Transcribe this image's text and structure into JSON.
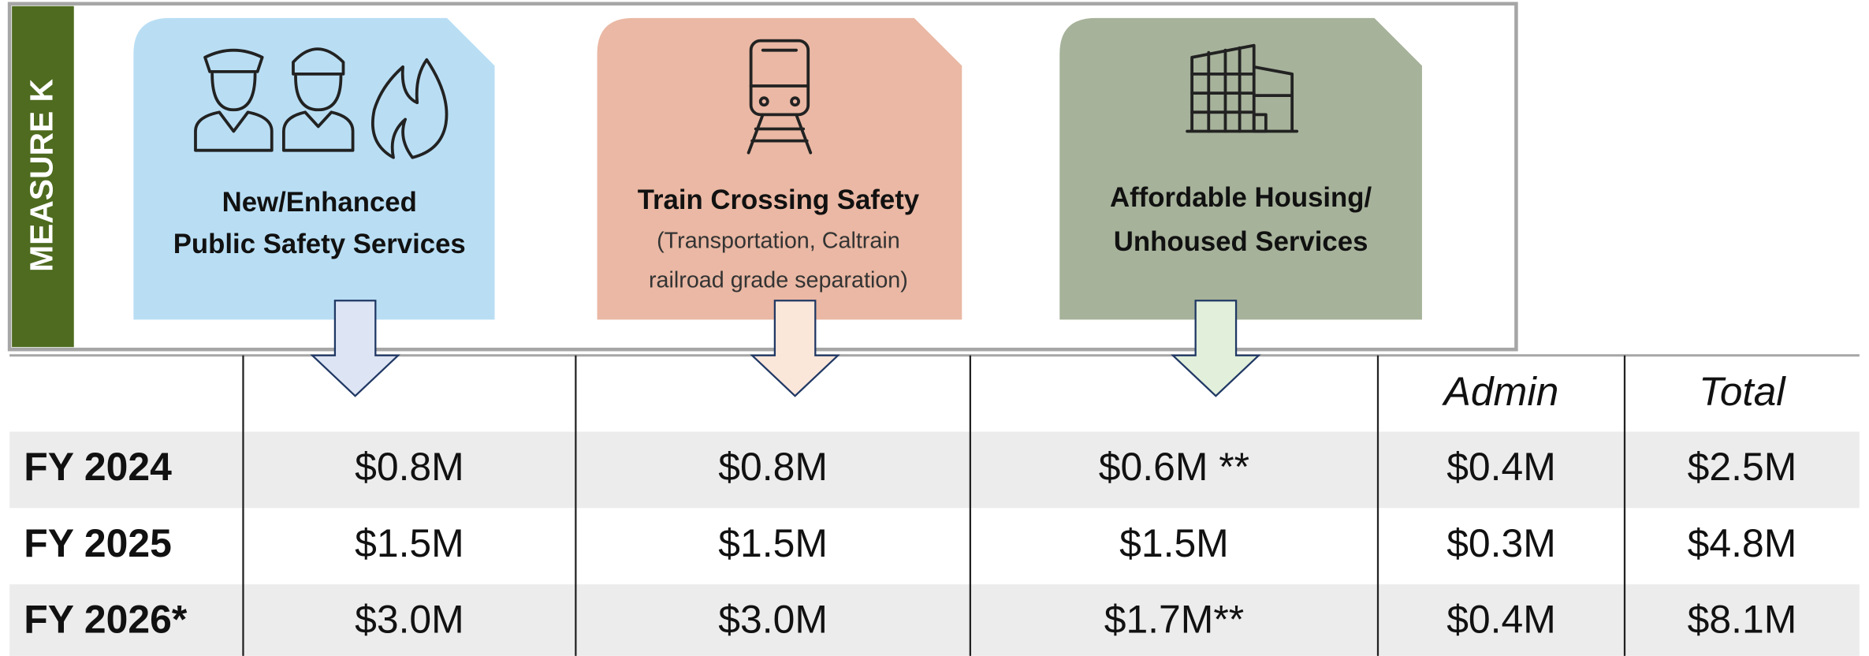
{
  "sidebar": "MEASURE K",
  "cards": [
    {
      "title": [
        "New/Enhanced",
        "Public Safety Services"
      ]
    },
    {
      "title": [
        "Train Crossing Safety"
      ],
      "subtitle": [
        "(Transportation, Caltrain",
        "railroad grade separation)"
      ]
    },
    {
      "title": [
        "Affordable Housing/",
        "Unhoused Services"
      ]
    }
  ],
  "table": {
    "header": [
      "Admin",
      "Total"
    ],
    "rows": [
      [
        "FY 2024",
        "$0.8M",
        "$0.8M",
        "$0.6M **",
        "$0.4M",
        "$2.5M"
      ],
      [
        "FY 2025",
        "$1.5M",
        "$1.5M",
        "$1.5M",
        "$0.3M",
        "$4.8M"
      ],
      [
        "FY 2026*",
        "$3.0M",
        "$3.0M",
        "$1.7M**",
        "$0.4M",
        "$8.1M"
      ]
    ]
  }
}
